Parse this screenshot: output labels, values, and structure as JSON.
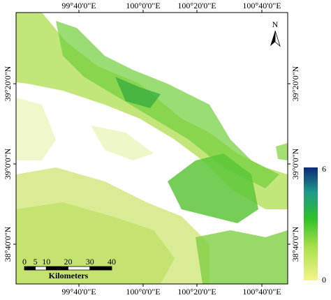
{
  "map": {
    "top_labels": [
      "99°40'0\"E",
      "100°0'0\"E",
      "100°20'0\"E",
      "100°40'0\"E"
    ],
    "bottom_labels": [
      "99°40'0\"E",
      "100°0'0\"E",
      "100°20'0\"E",
      "100°40'0\"E"
    ],
    "left_labels": [
      "39°20'0\"N",
      "39°0'0\"N",
      "38°40'0\"N"
    ],
    "right_labels": [
      "39°20'0\"N",
      "39°0'0\"N",
      "38°40'0\"N"
    ],
    "north": "N",
    "scale_bar": {
      "ticks": [
        0,
        5,
        10,
        20,
        30,
        40
      ],
      "unit": "Kilometers"
    },
    "legend": {
      "max": 6,
      "min": 0
    }
  }
}
